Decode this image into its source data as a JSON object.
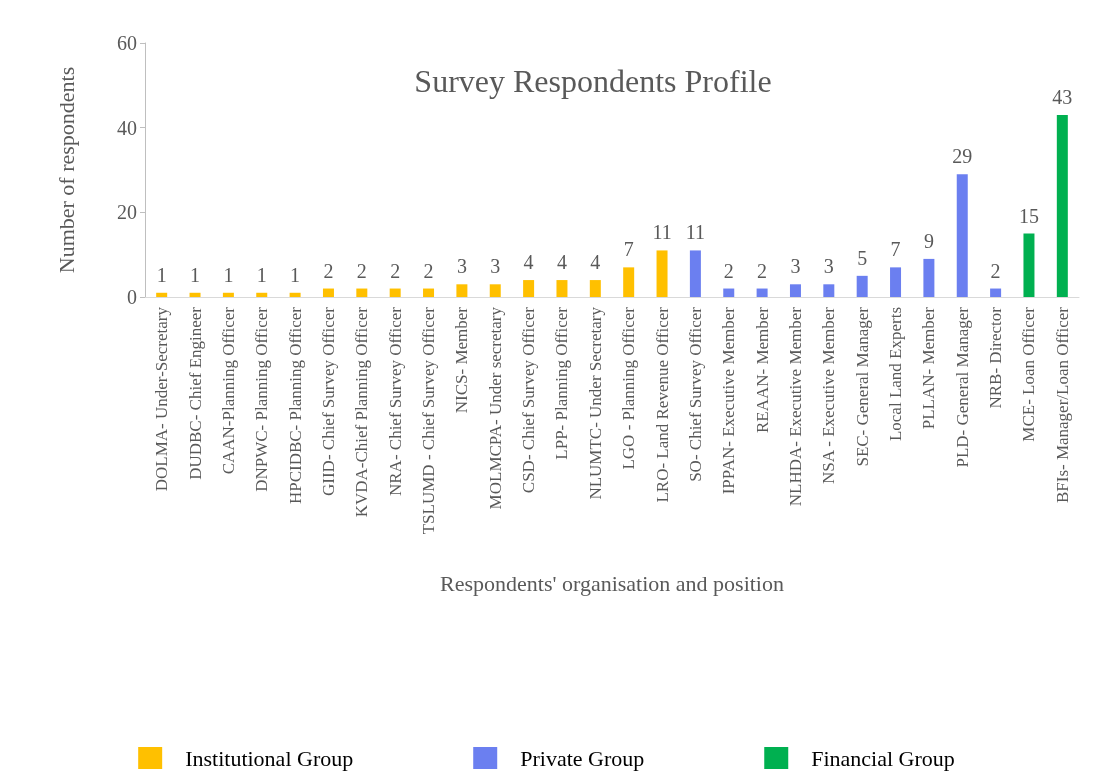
{
  "chart_data": {
    "type": "bar",
    "title": "Survey Respondents Profile",
    "xlabel": "Respondents' organisation and position",
    "ylabel": "Number of respondents",
    "categories": [
      "DOLMA- Under-Secretary",
      "DUDBC- Chief Engineer",
      "CAAN-Planning Officer",
      "DNPWC- Planning Officer",
      "HPCIDBC- Planning Officer",
      "GIID- Chief Survey Officer",
      "KVDA-Chief Planning Officer",
      "NRA- Chief Survey Officer",
      "TSLUMD - Chief Survey Officer",
      "NICS- Member",
      "MOLMCPA- Under secretary",
      "CSD- Chief Survey Officer",
      "LPP- Planning Officer",
      "NLUMTC- Under Secretary",
      "LGO - Planning Officer",
      "LRO- Land Revenue Officer",
      "SO- Chief Survey Officer",
      "IPPAN- Executive Member",
      "REAAN- Member",
      "NLHDA- Executive Member",
      "NSA - Executive Member",
      "SEC- General Manager",
      "Local Land Experts",
      "PLLAN- Member",
      "PLD- General Manager",
      "NRB- Director",
      "MCE- Loan Officer",
      "BFIs- Manager/Loan Officer"
    ],
    "series": [
      {
        "name": "Institutional Group",
        "color": "#ffc000",
        "values": [
          1,
          1,
          1,
          1,
          1,
          2,
          2,
          2,
          2,
          3,
          3,
          4,
          4,
          4,
          7,
          11,
          null,
          null,
          null,
          null,
          null,
          null,
          null,
          null,
          null,
          null,
          null,
          null
        ]
      },
      {
        "name": "Private Group",
        "color": "#6b7ff0",
        "values": [
          null,
          null,
          null,
          null,
          null,
          null,
          null,
          null,
          null,
          null,
          null,
          null,
          null,
          null,
          null,
          null,
          11,
          2,
          2,
          3,
          3,
          5,
          7,
          9,
          29,
          2,
          null,
          null
        ]
      },
      {
        "name": "Financial Group",
        "color": "#00b050",
        "values": [
          null,
          null,
          null,
          null,
          null,
          null,
          null,
          null,
          null,
          null,
          null,
          null,
          null,
          null,
          null,
          null,
          null,
          null,
          null,
          null,
          null,
          null,
          null,
          null,
          null,
          null,
          15,
          43
        ]
      }
    ],
    "ylim": [
      0,
      60
    ],
    "yticks": [
      0,
      20,
      40,
      60
    ],
    "grid": false,
    "legend": "bottom",
    "data_labels": true
  }
}
